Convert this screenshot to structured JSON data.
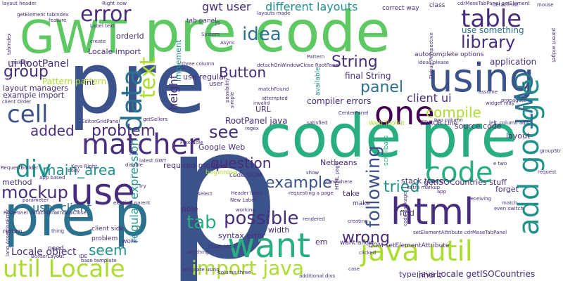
{
  "word_cloud": {
    "colors": {
      "deep_purple": "#440154",
      "navy_purple": "#472d7b",
      "slate_blue": "#3b528b",
      "steel_blue": "#2c728e",
      "teal": "#21918c",
      "green_teal": "#28ae80",
      "green": "#5ec962",
      "lime": "#addc30",
      "yellow_lime": "#d2e21b"
    },
    "words": [
      {
        "text": "pre code"
      },
      {
        "text": "p"
      },
      {
        "text": "pre"
      },
      {
        "text": "code pre"
      },
      {
        "text": "pre p"
      },
      {
        "text": "GWT"
      },
      {
        "text": "using"
      },
      {
        "text": "java util"
      },
      {
        "text": "html"
      },
      {
        "text": "one"
      },
      {
        "text": "use"
      },
      {
        "text": "want"
      },
      {
        "text": "code"
      },
      {
        "text": "add google"
      },
      {
        "text": "util Locale"
      },
      {
        "text": "matcher"
      },
      {
        "text": "div"
      },
      {
        "text": "data"
      },
      {
        "text": "cell"
      },
      {
        "text": "import java"
      },
      {
        "text": "GWT"
      },
      {
        "text": "text"
      },
      {
        "text": "tab"
      },
      {
        "text": "possible"
      },
      {
        "text": "example"
      },
      {
        "text": "following"
      },
      {
        "text": "mockup"
      },
      {
        "text": "wrong"
      },
      {
        "text": "table"
      },
      {
        "text": "error"
      },
      {
        "text": "idea"
      },
      {
        "text": "library"
      },
      {
        "text": "compile"
      },
      {
        "text": "String"
      },
      {
        "text": "panel"
      },
      {
        "text": "tried"
      },
      {
        "text": "problem"
      },
      {
        "text": "question"
      },
      {
        "text": "main_area"
      },
      {
        "text": "added"
      },
      {
        "text": "group"
      },
      {
        "text": "see"
      },
      {
        "text": "seem"
      },
      {
        "text": "user client"
      },
      {
        "text": "Button"
      },
      {
        "text": "height"
      },
      {
        "text": "ui RootPanel"
      },
      {
        "text": "gwt user"
      },
      {
        "text": "different layouts"
      },
      {
        "text": "client ui"
      },
      {
        "text": "regular expression"
      },
      {
        "text": "Locale object"
      },
      {
        "text": "RootPanel java"
      },
      {
        "text": "Locale getISOCountries"
      },
      {
        "text": "use something"
      },
      {
        "text": "Pattern pattern"
      },
      {
        "text": "layout managers"
      },
      {
        "text": "application"
      },
      {
        "text": "final String"
      },
      {
        "text": "compiler errors"
      },
      {
        "text": "source code"
      },
      {
        "text": "stack trace"
      },
      {
        "text": "getISOCountries stuff"
      },
      {
        "text": "Google Web"
      },
      {
        "text": "Netbeans"
      },
      {
        "text": "required module"
      },
      {
        "text": "Locale import"
      },
      {
        "text": "example import"
      },
      {
        "text": "code DOM"
      },
      {
        "text": "orderId"
      },
      {
        "text": "int"
      },
      {
        "text": "tab panel"
      },
      {
        "text": "autocomplete options"
      },
      {
        "text": "use regular"
      },
      {
        "text": "implement"
      },
      {
        "text": "URL"
      },
      {
        "text": "beginning"
      },
      {
        "text": "method"
      },
      {
        "text": "able"
      },
      {
        "text": "width"
      },
      {
        "text": "em"
      },
      {
        "text": "take"
      },
      {
        "text": "make"
      },
      {
        "text": "find"
      },
      {
        "text": "forget"
      },
      {
        "text": "type java"
      },
      {
        "text": "inherit"
      },
      {
        "text": "layout"
      },
      {
        "text": "available"
      },
      {
        "text": "client side"
      },
      {
        "text": "syntax error"
      },
      {
        "text": "getElement tabIndex"
      },
      {
        "text": "correct way"
      },
      {
        "text": "class"
      },
      {
        "text": "cdrMeseTabPanel getElement"
      },
      {
        "text": "layouts made"
      },
      {
        "text": "Web Toolkit"
      },
      {
        "text": "ERROR Line"
      },
      {
        "text": "DOM setElementAttribute"
      },
      {
        "text": "setElementAttribute cdrMeseTabPanel"
      },
      {
        "text": "return"
      },
      {
        "text": "user"
      },
      {
        "text": "work"
      },
      {
        "text": "need"
      },
      {
        "text": "Order html"
      },
      {
        "text": "want allow"
      },
      {
        "text": "thing"
      },
      {
        "text": "problem"
      },
      {
        "text": "working"
      },
      {
        "text": "rendered"
      },
      {
        "text": "creating"
      },
      {
        "text": "show"
      },
      {
        "text": "select"
      },
      {
        "text": "case"
      },
      {
        "text": "template using"
      },
      {
        "text": "additional divs"
      },
      {
        "text": "tabIndex"
      },
      {
        "text": "scrollbars"
      },
      {
        "text": "code package"
      },
      {
        "text": "assume"
      },
      {
        "text": "two column"
      },
      {
        "text": "extra markup"
      },
      {
        "text": "layout header"
      },
      {
        "text": "Right now"
      },
      {
        "text": "Label text"
      },
      {
        "text": "System"
      },
      {
        "text": "Async"
      },
      {
        "text": "create"
      },
      {
        "text": "making"
      },
      {
        "text": "JS"
      },
      {
        "text": "three column"
      },
      {
        "text": "Pattern"
      },
      {
        "text": "detachOnWindowClose RootPanel"
      },
      {
        "text": "ideas please"
      },
      {
        "text": "matchFound"
      },
      {
        "text": "attempted"
      },
      {
        "text": "invalid"
      },
      {
        "text": "satisfied"
      },
      {
        "text": "CenterPanel"
      },
      {
        "text": "regex"
      },
      {
        "text": "FlexTable"
      },
      {
        "text": "EditorGridPanel"
      },
      {
        "text": "getSellers"
      },
      {
        "text": "disable"
      },
      {
        "text": "latest GWT"
      },
      {
        "text": "body"
      },
      {
        "text": "Header body"
      },
      {
        "text": "New Label"
      },
      {
        "text": "existing parent"
      },
      {
        "text": "RootPanel detachOnWindowClose"
      },
      {
        "text": "lang AssertionError"
      },
      {
        "text": "BorderLayout"
      },
      {
        "text": "base template"
      },
      {
        "text": "clicked"
      },
      {
        "text": "column three"
      },
      {
        "text": "mouse"
      },
      {
        "text": "parent widget"
      },
      {
        "text": "propagate"
      },
      {
        "text": "request"
      },
      {
        "text": "groupStr"
      },
      {
        "text": "e two"
      },
      {
        "text": "match"
      },
      {
        "text": "even switch"
      },
      {
        "text": "receiving"
      },
      {
        "text": "widget may"
      },
      {
        "text": "left_column add"
      },
      {
        "text": "HTML page"
      },
      {
        "text": "simple"
      },
      {
        "text": "try"
      },
      {
        "text": "app"
      },
      {
        "text": "RequestBuilder"
      },
      {
        "text": "possibility"
      },
      {
        "text": "client Order"
      },
      {
        "text": "Debug Perspective"
      },
      {
        "text": "somewhere"
      },
      {
        "text": "detach list"
      },
      {
        "text": "feature"
      },
      {
        "text": "Keys Right"
      },
      {
        "text": "app based"
      },
      {
        "text": "parameter"
      },
      {
        "text": "IDE"
      },
      {
        "text": "anything"
      },
      {
        "text": "requesting a page"
      }
    ]
  }
}
